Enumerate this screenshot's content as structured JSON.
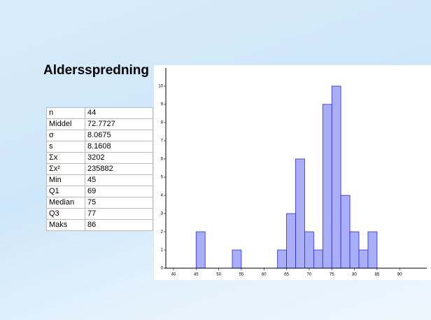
{
  "title": "Aldersspredning",
  "table": {
    "rows": [
      [
        "n",
        44
      ],
      [
        "Middel",
        72.7727
      ],
      [
        "σ",
        8.0675
      ],
      [
        "s",
        8.1608
      ],
      [
        "Σx",
        3202
      ],
      [
        "Σx²",
        235882
      ],
      [
        "Min",
        45
      ],
      [
        "Q1",
        69
      ],
      [
        "Median",
        75
      ],
      [
        "Q3",
        77
      ],
      [
        "Maks",
        86
      ]
    ]
  },
  "chart_data": {
    "type": "histogram",
    "bins": [
      45,
      47,
      49,
      51,
      53,
      55,
      57,
      59,
      61,
      63,
      65,
      67,
      69,
      71,
      73,
      75,
      77,
      79,
      81,
      83,
      85
    ],
    "values": [
      2,
      0,
      0,
      0,
      1,
      0,
      0,
      0,
      0,
      1,
      3,
      6,
      2,
      1,
      9,
      10,
      4,
      2,
      1,
      2
    ],
    "color": "#a9aef7",
    "xlim": [
      38,
      96
    ],
    "xticks": [
      40,
      45,
      50,
      55,
      60,
      65,
      70,
      75,
      80,
      85,
      90
    ],
    "ylim": [
      0,
      11
    ],
    "yticks": [
      0,
      1,
      2,
      3,
      4,
      5,
      6,
      7,
      8,
      9,
      10
    ]
  }
}
